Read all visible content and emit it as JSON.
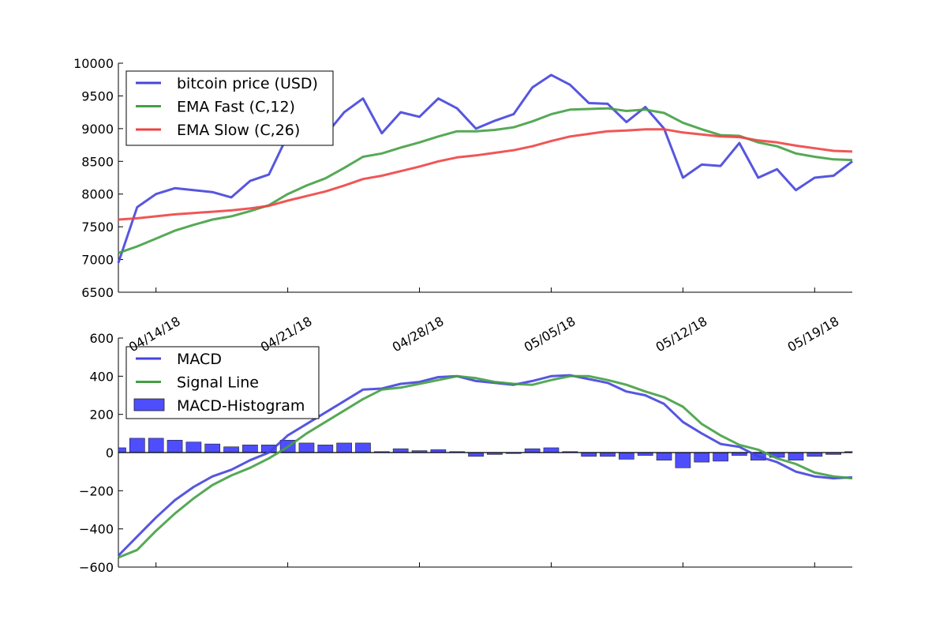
{
  "chart_data": [
    {
      "type": "line",
      "title": "",
      "xlabel": "",
      "ylabel": "",
      "ylim": [
        6500,
        10000
      ],
      "yticks": [
        6500,
        7000,
        7500,
        8000,
        8500,
        9000,
        9500,
        10000
      ],
      "x": [
        "04/12/18",
        "04/13/18",
        "04/14/18",
        "04/15/18",
        "04/16/18",
        "04/17/18",
        "04/18/18",
        "04/19/18",
        "04/20/18",
        "04/21/18",
        "04/22/18",
        "04/23/18",
        "04/24/18",
        "04/25/18",
        "04/26/18",
        "04/27/18",
        "04/28/18",
        "04/29/18",
        "04/30/18",
        "05/01/18",
        "05/02/18",
        "05/03/18",
        "05/04/18",
        "05/05/18",
        "05/06/18",
        "05/07/18",
        "05/08/18",
        "05/09/18",
        "05/10/18",
        "05/11/18",
        "05/12/18",
        "05/13/18",
        "05/14/18",
        "05/15/18",
        "05/16/18",
        "05/17/18",
        "05/18/18",
        "05/19/18",
        "05/20/18",
        "05/21/18"
      ],
      "xticks": [
        "04/14/18",
        "04/21/18",
        "04/28/18",
        "05/05/18",
        "05/12/18",
        "05/19/18"
      ],
      "legend_position": "upper-left",
      "series": [
        {
          "name": "bitcoin price (USD)",
          "color": "#4444dd",
          "values": [
            6950,
            7800,
            8000,
            8090,
            8060,
            8030,
            7950,
            8200,
            8300,
            8900,
            8800,
            8900,
            9250,
            9460,
            8930,
            9250,
            9180,
            9460,
            9310,
            9000,
            9120,
            9220,
            9630,
            9820,
            9670,
            9390,
            9380,
            9100,
            9330,
            9000,
            8250,
            8450,
            8430,
            8780,
            8250,
            8380,
            8060,
            8250,
            8280,
            8500
          ]
        },
        {
          "name": "EMA Fast (C,12)",
          "color": "#44a044",
          "values": [
            7100,
            7200,
            7320,
            7440,
            7530,
            7610,
            7660,
            7740,
            7830,
            8000,
            8130,
            8240,
            8400,
            8570,
            8620,
            8710,
            8790,
            8880,
            8960,
            8960,
            8980,
            9020,
            9110,
            9220,
            9290,
            9300,
            9310,
            9270,
            9290,
            9240,
            9090,
            8990,
            8900,
            8890,
            8790,
            8730,
            8620,
            8570,
            8530,
            8520
          ]
        },
        {
          "name": "EMA Slow (C,26)",
          "color": "#ee4444",
          "values": [
            7610,
            7630,
            7660,
            7690,
            7710,
            7730,
            7750,
            7780,
            7820,
            7900,
            7970,
            8040,
            8130,
            8230,
            8280,
            8350,
            8420,
            8500,
            8560,
            8590,
            8630,
            8670,
            8730,
            8810,
            8880,
            8920,
            8960,
            8970,
            8990,
            8990,
            8940,
            8910,
            8880,
            8870,
            8820,
            8790,
            8740,
            8700,
            8660,
            8650
          ]
        }
      ]
    },
    {
      "type": "line",
      "title": "",
      "xlabel": "",
      "ylabel": "",
      "ylim": [
        -600,
        600
      ],
      "yticks": [
        -600,
        -400,
        -200,
        0,
        200,
        400,
        600
      ],
      "x_days": 40,
      "legend_position": "upper-left",
      "series": [
        {
          "name": "MACD",
          "color": "#4444dd",
          "values": [
            -540,
            -440,
            -340,
            -250,
            -180,
            -125,
            -90,
            -40,
            0,
            90,
            150,
            210,
            270,
            330,
            335,
            360,
            370,
            395,
            400,
            375,
            365,
            355,
            375,
            400,
            405,
            385,
            365,
            320,
            300,
            255,
            160,
            100,
            45,
            30,
            -20,
            -50,
            -100,
            -125,
            -135,
            -130
          ]
        },
        {
          "name": "Signal Line",
          "color": "#44a044",
          "values": [
            -550,
            -510,
            -410,
            -320,
            -240,
            -170,
            -120,
            -80,
            -30,
            30,
            100,
            160,
            220,
            280,
            330,
            340,
            360,
            380,
            400,
            390,
            370,
            360,
            355,
            380,
            400,
            400,
            380,
            355,
            320,
            290,
            240,
            150,
            90,
            40,
            15,
            -30,
            -60,
            -105,
            -125,
            -135
          ]
        },
        {
          "name": "MACD-Histogram",
          "color": "#4444ff",
          "type": "bar",
          "values": [
            25,
            75,
            75,
            65,
            55,
            45,
            30,
            40,
            40,
            65,
            50,
            40,
            50,
            50,
            5,
            20,
            10,
            15,
            5,
            -20,
            -10,
            -5,
            20,
            25,
            5,
            -20,
            -20,
            -35,
            -15,
            -40,
            -80,
            -50,
            -45,
            -15,
            -40,
            -25,
            -40,
            -20,
            -10,
            5
          ]
        }
      ]
    }
  ]
}
